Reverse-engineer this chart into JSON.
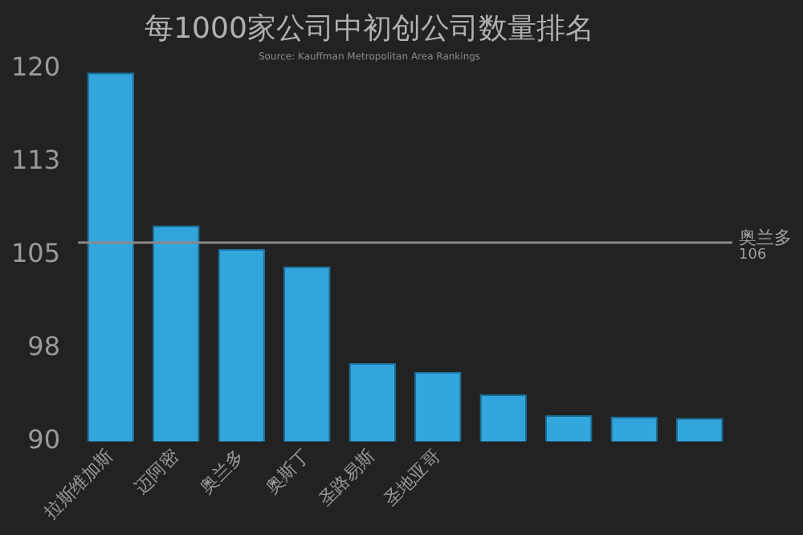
{
  "chart_data": {
    "type": "bar",
    "title": "每1000家公司中初创公司数量排名",
    "subtitle": "Source: Kauffman Metropolitan Area Rankings",
    "categories": [
      "拉斯维加斯",
      "迈阿密",
      "奥兰多",
      "奥斯丁",
      "圣路易斯",
      "圣地亚哥",
      null,
      null,
      null,
      null
    ],
    "values": [
      119.7,
      107.4,
      105.5,
      104.1,
      96.3,
      95.6,
      93.8,
      92.1,
      92.0,
      91.9
    ],
    "color": "#33a5dd",
    "ylim": [
      90,
      120
    ],
    "yticks": [
      90,
      {
        "value": 97.5,
        "label": "98"
      },
      105,
      {
        "value": 112.5,
        "label": "113"
      },
      120
    ],
    "ref_lines": [
      {
        "axis": "y",
        "value": 106,
        "label": "奥兰多 106",
        "color": "#8a8a8a"
      }
    ],
    "grid": false,
    "legend": false
  }
}
